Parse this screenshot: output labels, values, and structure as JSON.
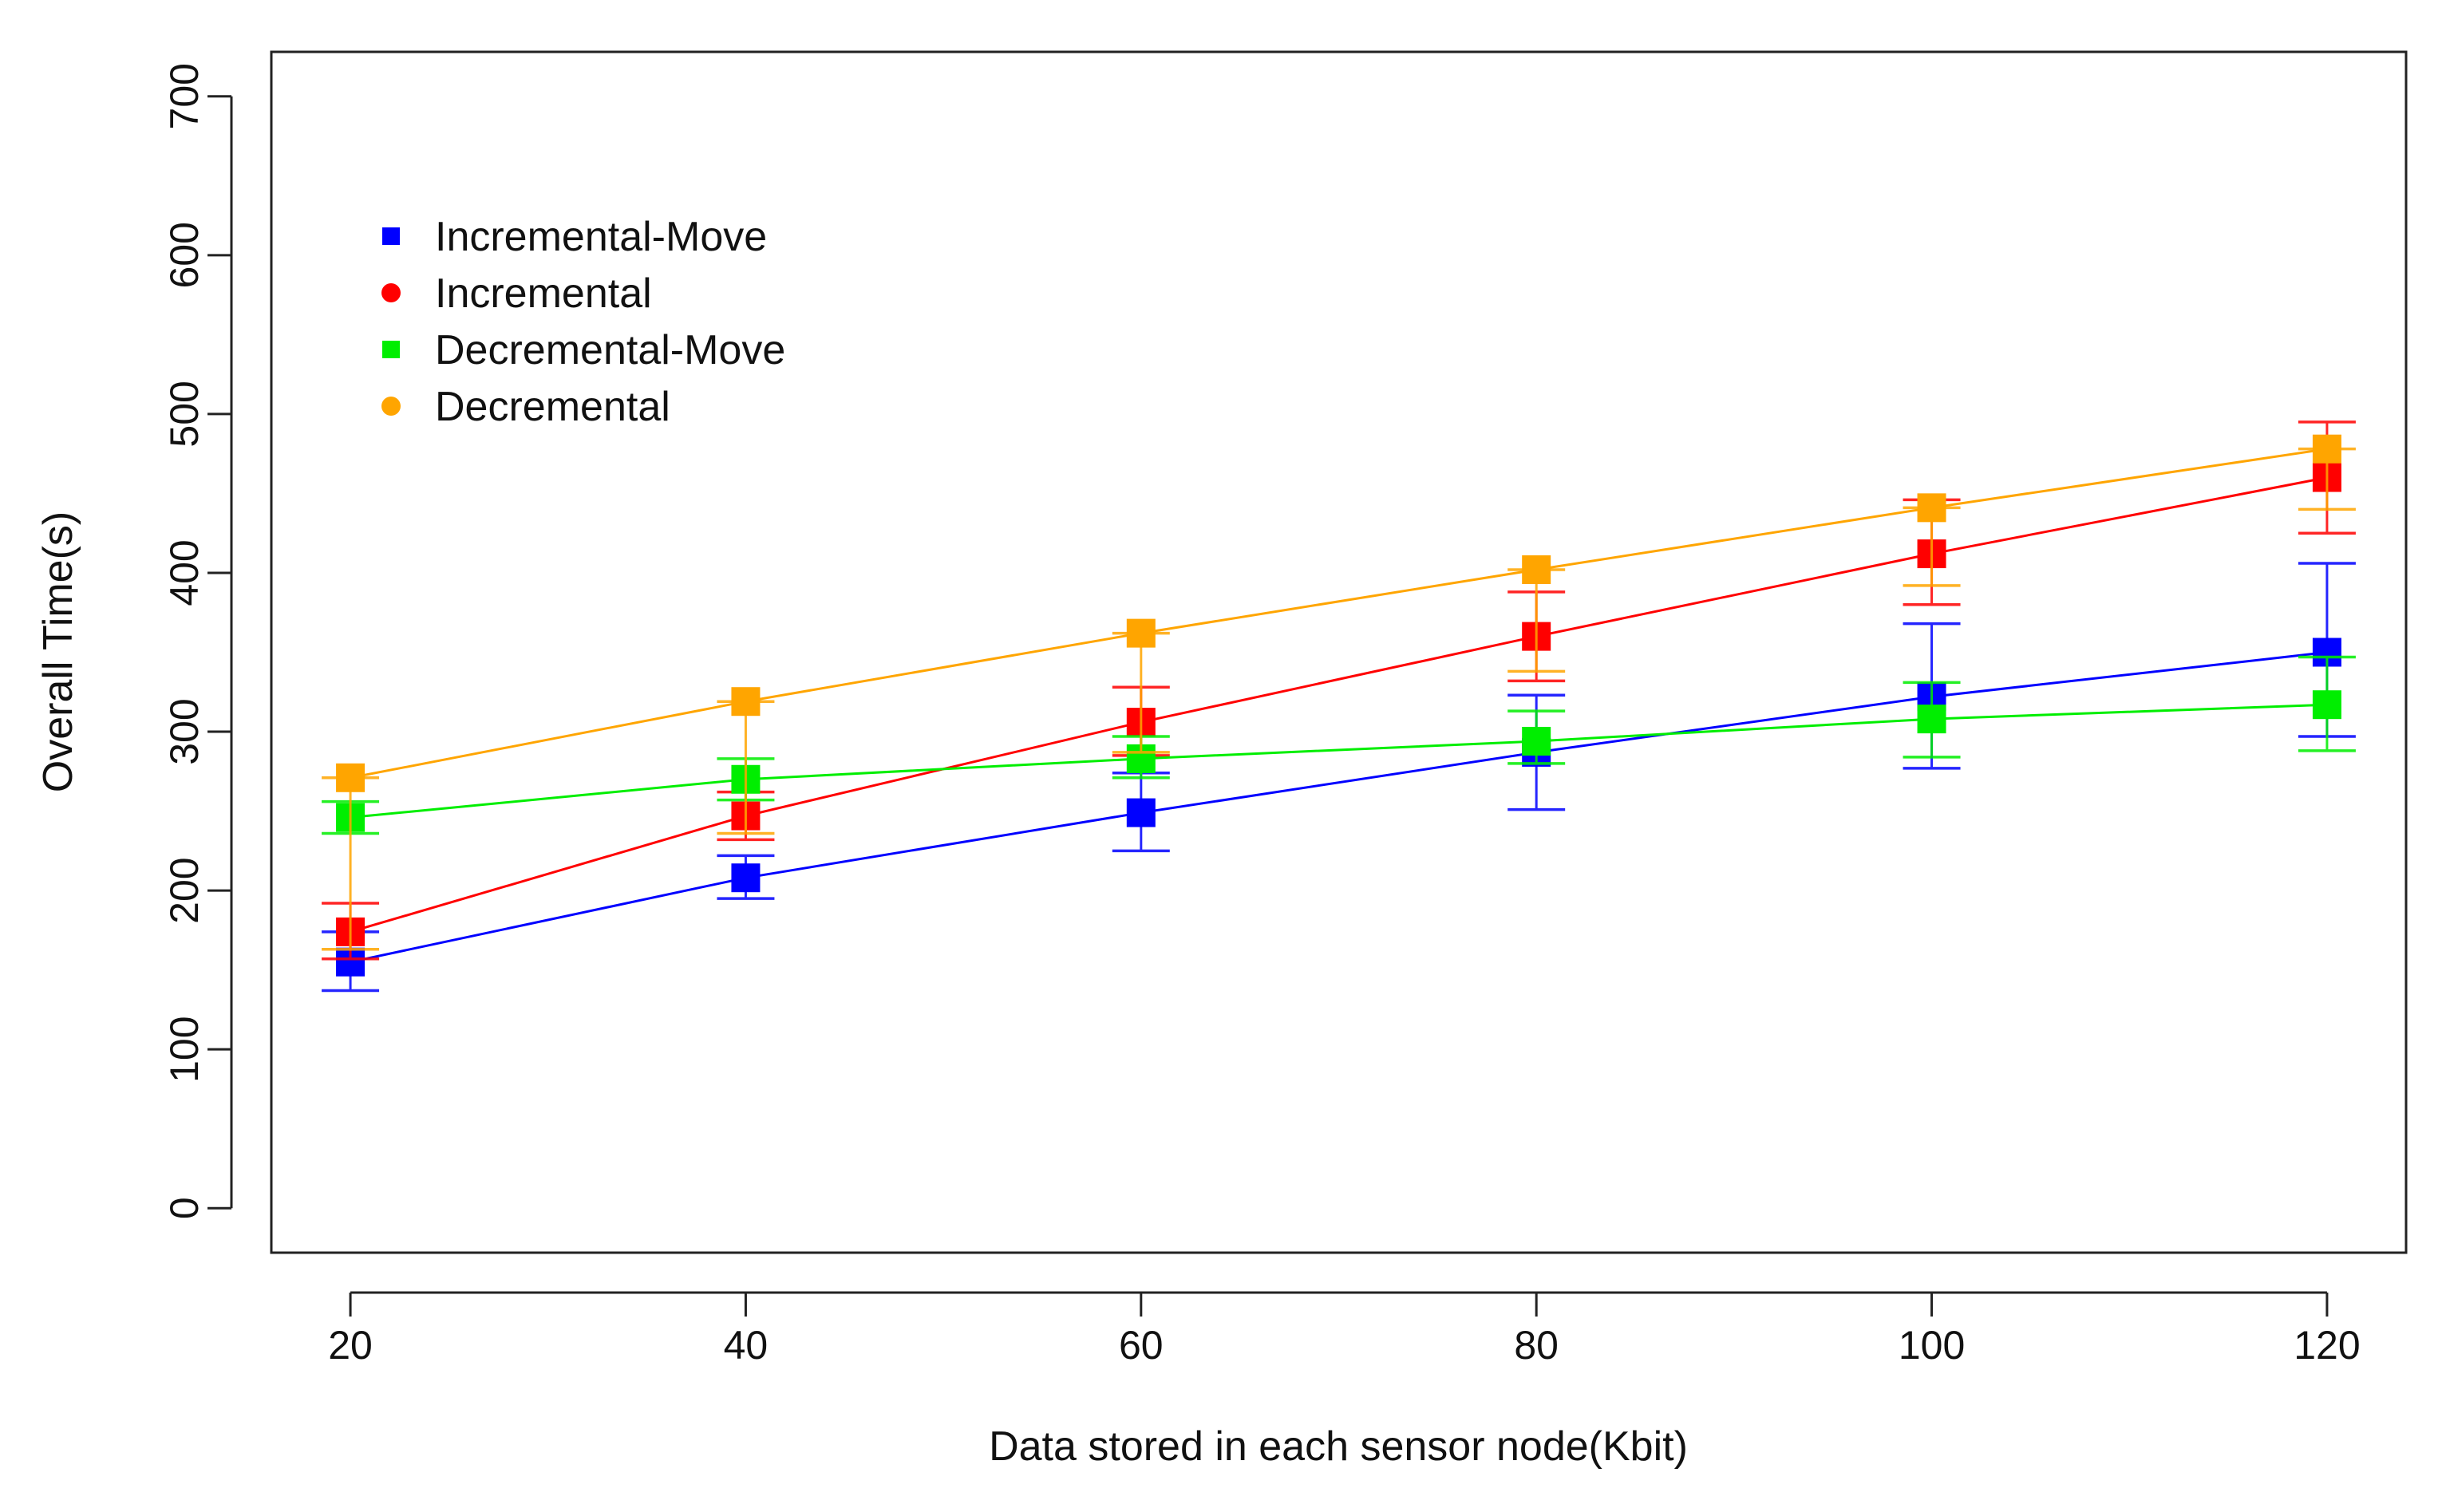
{
  "chart_data": {
    "type": "line",
    "title": "",
    "xlabel": "Data stored in each sensor node(Kbit)",
    "ylabel": "Overall Time(s)",
    "xlim": [
      16,
      124
    ],
    "ylim": [
      -28,
      728
    ],
    "x": [
      20,
      40,
      60,
      80,
      100,
      120
    ],
    "x_tick_labels": [
      "20",
      "40",
      "60",
      "80",
      "100",
      "120"
    ],
    "y_ticks": [
      0,
      100,
      200,
      300,
      400,
      500,
      600,
      700
    ],
    "y_tick_labels": [
      "0",
      "100",
      "200",
      "300",
      "400",
      "500",
      "600",
      "700"
    ],
    "legend_position": "top-left",
    "grid": false,
    "series": [
      {
        "name": "Incremental-Move",
        "color": "#0000ff",
        "marker": "square",
        "legend_marker": "square",
        "values": [
          155,
          208,
          249,
          287,
          322,
          350
        ],
        "err_low": [
          137,
          195,
          225,
          251,
          277,
          297
        ],
        "err_high": [
          174,
          222,
          274,
          323,
          368,
          406
        ]
      },
      {
        "name": "Incremental",
        "color": "#ff0000",
        "marker": "square",
        "legend_marker": "circle",
        "values": [
          174,
          247,
          306,
          360,
          412,
          460
        ],
        "err_low": [
          157,
          232,
          285,
          332,
          380,
          425
        ],
        "err_high": [
          192,
          262,
          328,
          388,
          446,
          495
        ]
      },
      {
        "name": "Decremental-Move",
        "color": "#00ee00",
        "marker": "square",
        "legend_marker": "square",
        "values": [
          246,
          270,
          283,
          294,
          308,
          317
        ],
        "err_low": [
          236,
          257,
          271,
          280,
          284,
          288
        ],
        "err_high": [
          256,
          283,
          297,
          313,
          331,
          347
        ]
      },
      {
        "name": "Decremental",
        "color": "#ffa500",
        "marker": "square",
        "legend_marker": "circle",
        "values": [
          271,
          319,
          362,
          402,
          441,
          478
        ],
        "err_low": [
          163,
          236,
          287,
          338,
          392,
          440
        ],
        "err_high": [
          271,
          319,
          362,
          402,
          441,
          478
        ]
      }
    ]
  }
}
